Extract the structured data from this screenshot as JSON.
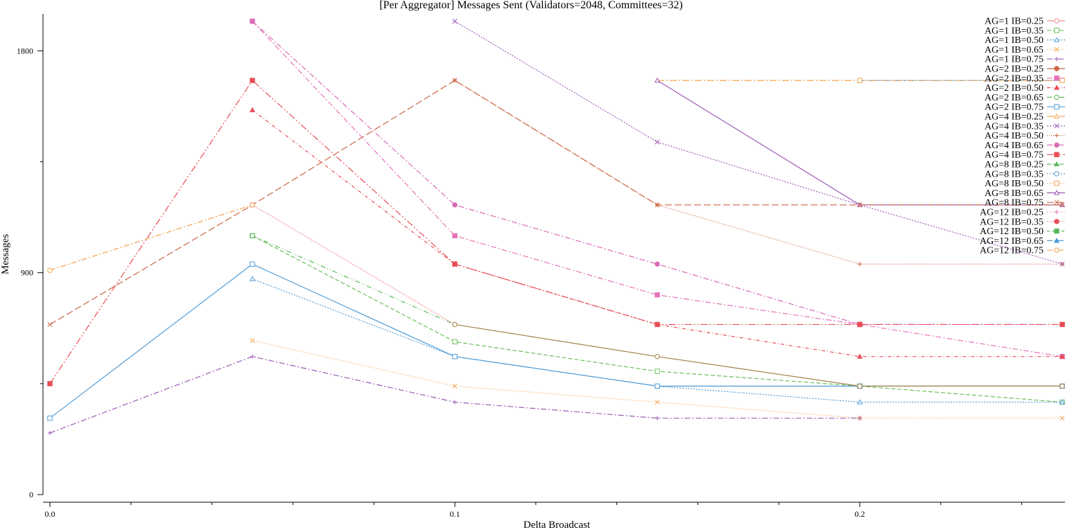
{
  "chart_data": {
    "type": "line",
    "title": "[Per Aggregator] Messages Sent (Validators=2048, Committees=32)",
    "xlabel": "Delta Broadcast",
    "ylabel": "Messages",
    "x": [
      0.0,
      0.05,
      0.1,
      0.15,
      0.2,
      0.25
    ],
    "xlim": [
      0,
      0.25
    ],
    "ylim": [
      0,
      1950
    ],
    "x_ticks": [
      {
        "value": 0,
        "label": "0.0"
      },
      {
        "value": 0.1,
        "label": "0.1"
      },
      {
        "value": 0.2,
        "label": "0.2"
      }
    ],
    "x_minor_ticks": [
      0.02,
      0.04,
      0.06,
      0.08,
      0.12,
      0.14,
      0.16,
      0.18,
      0.22,
      0.24
    ],
    "y_ticks": [
      {
        "value": 0,
        "label": "0"
      },
      {
        "value": 900,
        "label": "900"
      },
      {
        "value": 1800,
        "label": "1800"
      }
    ],
    "y_minor_ticks": [
      450,
      1350
    ],
    "grid": false,
    "legend_position": "top-right",
    "series": [
      {
        "name": "AG=1 IB=0.25",
        "color": "#f08c8c",
        "dash": "",
        "marker": "circle-open",
        "values": [
          null,
          null,
          null,
          null,
          null,
          null
        ]
      },
      {
        "name": "AG=1 IB=0.35",
        "color": "#6abf5a",
        "dash": "6,3",
        "marker": "square-open",
        "values": [
          null,
          1050,
          620,
          500,
          440,
          375
        ]
      },
      {
        "name": "AG=1 IB=0.50",
        "color": "#4f9bd6",
        "dash": "2,2",
        "marker": "triangle-open",
        "values": [
          null,
          875,
          560,
          440,
          375,
          375
        ]
      },
      {
        "name": "AG=1 IB=0.65",
        "color": "#f5a55a",
        "dash": "1,2",
        "marker": "x",
        "values": [
          null,
          625,
          440,
          375,
          310,
          310
        ]
      },
      {
        "name": "AG=1 IB=0.75",
        "color": "#9b59b6",
        "dash": "8,3,2,3",
        "marker": "plus",
        "values": [
          250,
          560,
          375,
          310,
          310,
          null
        ]
      },
      {
        "name": "AG=2 IB=0.25",
        "color": "#cc6644",
        "dash": "",
        "marker": "circle",
        "values": [
          null,
          null,
          null,
          null,
          null,
          null
        ]
      },
      {
        "name": "AG=2 IB=0.35",
        "color": "#e673b8",
        "dash": "8,3,2,3",
        "marker": "square",
        "values": [
          null,
          1920,
          1050,
          810,
          690,
          560
        ]
      },
      {
        "name": "AG=2 IB=0.50",
        "color": "#e84c55",
        "dash": "5,3,1,3",
        "marker": "triangle",
        "values": [
          null,
          1560,
          935,
          690,
          560,
          560
        ]
      },
      {
        "name": "AG=2 IB=0.65",
        "color": "#5cb85c",
        "dash": "7,3,1,3,1,3",
        "marker": "circle-open",
        "values": [
          null,
          1050,
          690,
          null,
          null,
          null
        ]
      },
      {
        "name": "AG=2 IB=0.75",
        "color": "#4f9bd6",
        "dash": "",
        "marker": "square-open",
        "values": [
          310,
          935,
          560,
          440,
          440,
          440
        ]
      },
      {
        "name": "AG=4 IB=0.25",
        "color": "#f5a04a",
        "dash": "10,3,2,3",
        "marker": "triangle-open",
        "values": [
          null,
          null,
          null,
          1680,
          1680,
          1680
        ]
      },
      {
        "name": "AG=4 IB=0.35",
        "color": "#9b59b6",
        "dash": "2,2",
        "marker": "x",
        "values": [
          null,
          null,
          1920,
          1430,
          1175,
          935
        ]
      },
      {
        "name": "AG=4 IB=0.50",
        "color": "#cc6644",
        "dash": "1,2",
        "marker": "plus",
        "values": [
          null,
          null,
          1680,
          1175,
          935,
          935
        ]
      },
      {
        "name": "AG=4 IB=0.65",
        "color": "#d96ab5",
        "dash": "8,3,2,3",
        "marker": "circle",
        "values": [
          null,
          1920,
          1175,
          935,
          690,
          690
        ]
      },
      {
        "name": "AG=4 IB=0.75",
        "color": "#e84c55",
        "dash": "10,3,2,3,2,3",
        "marker": "square",
        "values": [
          450,
          1680,
          935,
          690,
          690,
          690
        ]
      },
      {
        "name": "AG=8 IB=0.25",
        "color": "#5cb85c",
        "dash": "6,3",
        "marker": "triangle",
        "values": [
          null,
          null,
          null,
          null,
          null,
          null
        ]
      },
      {
        "name": "AG=8 IB=0.35",
        "color": "#4f9bd6",
        "dash": "2,2",
        "marker": "circle-open",
        "values": [
          null,
          null,
          null,
          null,
          1680,
          1680
        ]
      },
      {
        "name": "AG=8 IB=0.50",
        "color": "#f5a04a",
        "dash": "1,2",
        "marker": "square-open",
        "values": [
          null,
          null,
          null,
          null,
          1680,
          1680
        ]
      },
      {
        "name": "AG=8 IB=0.65",
        "color": "#9b59b6",
        "dash": "",
        "marker": "triangle-open",
        "values": [
          null,
          null,
          null,
          1680,
          1175,
          1175
        ]
      },
      {
        "name": "AG=8 IB=0.75",
        "color": "#cc6644",
        "dash": "10,4",
        "marker": "x",
        "values": [
          690,
          1175,
          1680,
          1175,
          1175,
          1175
        ]
      },
      {
        "name": "AG=12 IB=0.25",
        "color": "#e673b8",
        "dash": "1,3",
        "marker": "plus",
        "values": [
          null,
          null,
          null,
          null,
          null,
          null
        ]
      },
      {
        "name": "AG=12 IB=0.35",
        "color": "#e84c55",
        "dash": "1,2",
        "marker": "circle",
        "values": [
          null,
          1175,
          690,
          null,
          null,
          null
        ]
      },
      {
        "name": "AG=12 IB=0.50",
        "color": "#5cb85c",
        "dash": "4,3",
        "marker": "square",
        "values": [
          null,
          null,
          null,
          null,
          null,
          null
        ]
      },
      {
        "name": "AG=12 IB=0.65",
        "color": "#4f9bd6",
        "dash": "8,3,2,3",
        "marker": "triangle",
        "values": [
          null,
          null,
          null,
          null,
          null,
          null
        ]
      },
      {
        "name": "AG=12 IB=0.75",
        "color": "#f5a04a",
        "dash": "8,3,2,3",
        "marker": "circle-open",
        "values": [
          910,
          1175,
          null,
          null,
          null,
          null
        ]
      },
      {
        "name": "",
        "color": "#a3824a",
        "dash": "",
        "marker": "circle-open",
        "values": [
          null,
          null,
          690,
          560,
          440,
          440
        ]
      }
    ]
  }
}
